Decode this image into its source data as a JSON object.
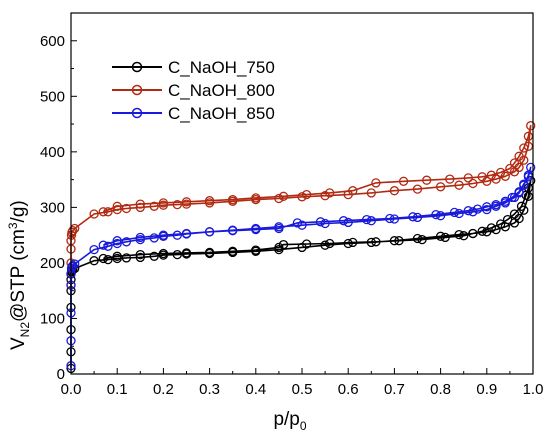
{
  "chart_data": {
    "type": "line",
    "xlabel_main": "p/p",
    "xlabel_sub": "0",
    "ylabel_main": "V",
    "ylabel_sub": "N2",
    "ylabel_tail": "@STP (cm",
    "ylabel_sup": "3",
    "ylabel_end": "/g)",
    "xlim": [
      0.0,
      1.0
    ],
    "ylim": [
      0,
      650
    ],
    "xticks": [
      "0.0",
      "0.1",
      "0.2",
      "0.3",
      "0.4",
      "0.5",
      "0.6",
      "0.7",
      "0.8",
      "0.9",
      "1.0"
    ],
    "yticks": [
      "0",
      "100",
      "200",
      "300",
      "400",
      "500",
      "600"
    ],
    "xtick_values": [
      0,
      0.1,
      0.2,
      0.3,
      0.4,
      0.5,
      0.6,
      0.7,
      0.8,
      0.9,
      1.0
    ],
    "ytick_values": [
      0,
      100,
      200,
      300,
      400,
      500,
      600
    ],
    "legend_placement": "top-left",
    "series": [
      {
        "name": "C_NaOH_750",
        "color": "#000000",
        "x": [
          0.0,
          0.0,
          0.0,
          0.0,
          0.0,
          0.0,
          0.0,
          0.001,
          0.002,
          0.004,
          0.008,
          0.05,
          0.08,
          0.1,
          0.12,
          0.15,
          0.18,
          0.2,
          0.23,
          0.25,
          0.3,
          0.35,
          0.4,
          0.45,
          0.5,
          0.55,
          0.6,
          0.65,
          0.7,
          0.75,
          0.8,
          0.84,
          0.87,
          0.9,
          0.92,
          0.94,
          0.96,
          0.97,
          0.98,
          0.99,
          0.995,
          0.99,
          0.985,
          0.975,
          0.96,
          0.945,
          0.93,
          0.91,
          0.89,
          0.87,
          0.85,
          0.81,
          0.76,
          0.71,
          0.66,
          0.61,
          0.56,
          0.51,
          0.46,
          0.45,
          0.4,
          0.35,
          0.3,
          0.25,
          0.2,
          0.15,
          0.1,
          0.07
        ],
        "y": [
          10,
          40,
          80,
          120,
          150,
          170,
          180,
          184,
          186,
          188,
          190,
          204,
          206,
          208,
          209,
          210,
          212,
          214,
          215,
          216,
          217,
          219,
          221,
          224,
          228,
          232,
          235,
          237,
          240,
          244,
          248,
          251,
          253,
          256,
          260,
          265,
          272,
          280,
          295,
          320,
          348,
          335,
          322,
          302,
          288,
          278,
          270,
          263,
          257,
          253,
          249,
          246,
          242,
          240,
          238,
          237,
          235,
          234,
          233,
          228,
          223,
          221,
          219,
          218,
          217,
          215,
          212,
          208
        ]
      },
      {
        "name": "C_NaOH_800",
        "color": "#b22a12",
        "x": [
          0.0,
          0.0,
          0.0,
          0.0,
          0.001,
          0.002,
          0.004,
          0.008,
          0.05,
          0.08,
          0.1,
          0.12,
          0.15,
          0.18,
          0.2,
          0.23,
          0.25,
          0.3,
          0.35,
          0.4,
          0.45,
          0.5,
          0.55,
          0.6,
          0.65,
          0.7,
          0.75,
          0.8,
          0.84,
          0.87,
          0.9,
          0.92,
          0.94,
          0.96,
          0.97,
          0.98,
          0.99,
          0.995,
          0.99,
          0.98,
          0.97,
          0.96,
          0.95,
          0.93,
          0.91,
          0.89,
          0.86,
          0.82,
          0.77,
          0.72,
          0.66,
          0.61,
          0.56,
          0.51,
          0.46,
          0.4,
          0.35,
          0.3,
          0.25,
          0.2,
          0.15,
          0.1,
          0.07
        ],
        "y": [
          160,
          200,
          225,
          240,
          250,
          255,
          258,
          262,
          288,
          292,
          296,
          298,
          300,
          302,
          304,
          305,
          306,
          308,
          311,
          314,
          316,
          319,
          321,
          323,
          326,
          330,
          333,
          337,
          340,
          343,
          347,
          351,
          356,
          364,
          372,
          385,
          410,
          447,
          428,
          407,
          392,
          380,
          370,
          363,
          358,
          355,
          353,
          351,
          349,
          347,
          344,
          330,
          326,
          323,
          320,
          317,
          314,
          312,
          310,
          308,
          306,
          302,
          292
        ]
      },
      {
        "name": "C_NaOH_850",
        "color": "#1a1adb",
        "x": [
          0.0,
          0.0,
          0.0,
          0.0,
          0.0,
          0.001,
          0.002,
          0.004,
          0.008,
          0.05,
          0.08,
          0.1,
          0.12,
          0.15,
          0.18,
          0.2,
          0.23,
          0.25,
          0.3,
          0.35,
          0.4,
          0.45,
          0.5,
          0.55,
          0.6,
          0.65,
          0.7,
          0.75,
          0.8,
          0.84,
          0.87,
          0.9,
          0.92,
          0.94,
          0.96,
          0.97,
          0.98,
          0.99,
          0.995,
          0.99,
          0.98,
          0.97,
          0.955,
          0.94,
          0.92,
          0.9,
          0.88,
          0.86,
          0.83,
          0.79,
          0.74,
          0.69,
          0.64,
          0.59,
          0.54,
          0.49,
          0.45,
          0.4,
          0.35,
          0.3,
          0.25,
          0.2,
          0.15,
          0.1,
          0.07
        ],
        "y": [
          15,
          60,
          110,
          160,
          180,
          190,
          193,
          195,
          198,
          224,
          230,
          235,
          238,
          242,
          245,
          248,
          250,
          252,
          256,
          259,
          262,
          265,
          268,
          271,
          273,
          276,
          279,
          282,
          285,
          289,
          292,
          296,
          302,
          308,
          318,
          326,
          340,
          358,
          372,
          355,
          342,
          328,
          318,
          311,
          305,
          301,
          297,
          294,
          291,
          287,
          283,
          280,
          278,
          276,
          274,
          272,
          262,
          260,
          258,
          256,
          253,
          250,
          246,
          240,
          232
        ]
      }
    ]
  }
}
